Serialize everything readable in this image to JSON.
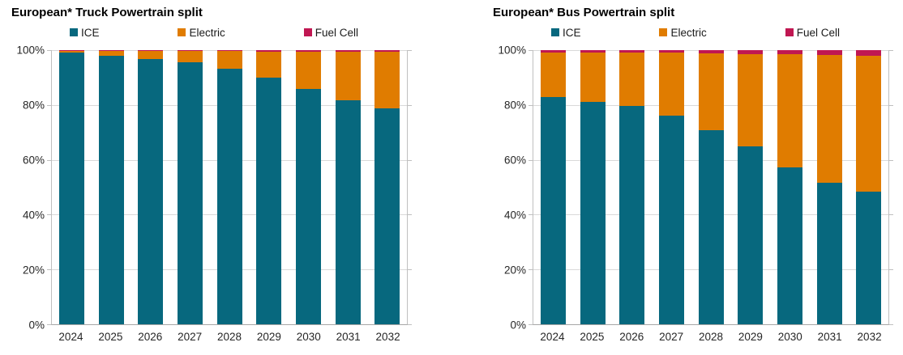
{
  "page": {
    "background": "#ffffff"
  },
  "colors": {
    "ice": "#07687e",
    "electric": "#e07c00",
    "fuel_cell": "#c01752",
    "gridline": "#d9d9d9",
    "plot_border": "#bfbfbf",
    "axis_line": "#a6a6a6",
    "label_text": "#262626",
    "title_text": "#000000"
  },
  "chart_data": [
    {
      "type": "bar",
      "stacked": true,
      "title": "European* Truck Powertrain split",
      "categories": [
        "2024",
        "2025",
        "2026",
        "2027",
        "2028",
        "2029",
        "2030",
        "2031",
        "2032"
      ],
      "series": [
        {
          "name": "ICE",
          "color": "#07687e",
          "values": [
            99.0,
            98.0,
            96.7,
            95.5,
            93.2,
            90.0,
            85.9,
            81.8,
            78.8
          ]
        },
        {
          "name": "Electric",
          "color": "#e07c00",
          "values": [
            0.7,
            1.7,
            3.0,
            4.1,
            6.4,
            9.5,
            13.6,
            17.7,
            20.6
          ]
        },
        {
          "name": "Fuel Cell",
          "color": "#c01752",
          "values": [
            0.3,
            0.3,
            0.3,
            0.4,
            0.4,
            0.5,
            0.5,
            0.5,
            0.6
          ]
        }
      ],
      "y_ticks": [
        "0%",
        "20%",
        "40%",
        "60%",
        "80%",
        "100%"
      ],
      "ylim": [
        0,
        100
      ],
      "unit": "%",
      "grid": true,
      "legend_position": "top"
    },
    {
      "type": "bar",
      "stacked": true,
      "title": "European* Bus Powertrain split",
      "categories": [
        "2024",
        "2025",
        "2026",
        "2027",
        "2028",
        "2029",
        "2030",
        "2031",
        "2032"
      ],
      "series": [
        {
          "name": "ICE",
          "color": "#07687e",
          "values": [
            83.0,
            81.2,
            79.7,
            76.2,
            70.9,
            65.0,
            57.1,
            51.5,
            48.5
          ]
        },
        {
          "name": "Electric",
          "color": "#e07c00",
          "values": [
            16.2,
            18.0,
            19.4,
            22.8,
            27.9,
            33.6,
            41.3,
            46.7,
            49.4
          ]
        },
        {
          "name": "Fuel Cell",
          "color": "#c01752",
          "values": [
            0.8,
            0.8,
            0.9,
            1.0,
            1.2,
            1.4,
            1.6,
            1.8,
            2.1
          ]
        }
      ],
      "y_ticks": [
        "0%",
        "20%",
        "40%",
        "60%",
        "80%",
        "100%"
      ],
      "ylim": [
        0,
        100
      ],
      "unit": "%",
      "grid": true,
      "legend_position": "top"
    }
  ]
}
